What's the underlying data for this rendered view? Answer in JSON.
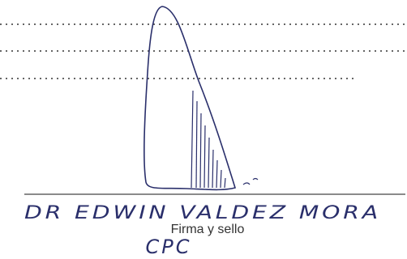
{
  "signature_block": {
    "handwritten_name": "DR EDWIN VALDEZ MORA",
    "label": "Firma y sello",
    "handwritten_note": "CPC"
  }
}
